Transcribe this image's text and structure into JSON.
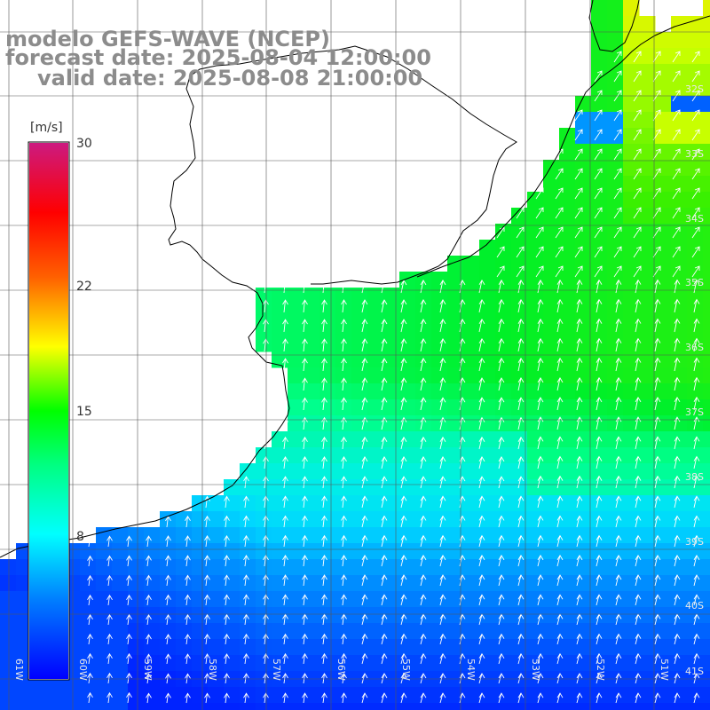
{
  "title": {
    "line1": "modelo GEFS-WAVE (NCEP)",
    "line2": "forecast date: 2025-08-04 12:00:00",
    "line3": "valid date: 2025-08-08 21:00:00"
  },
  "colorbar": {
    "unit": "[m/s]",
    "ticks": [
      "30",
      "22",
      "15",
      "8"
    ],
    "tick_values": [
      30,
      22,
      15,
      8
    ],
    "range": [
      0,
      30
    ],
    "colors": [
      "#0000ff",
      "#00aaff",
      "#00ffff",
      "#00ff00",
      "#ffff00",
      "#ff8000",
      "#ff0000",
      "#cc0066"
    ]
  },
  "lat_labels": [
    "32S",
    "33S",
    "34S",
    "35S",
    "36S",
    "37S",
    "38S",
    "39S",
    "40S",
    "41S"
  ],
  "lon_labels": [
    "61W",
    "60W",
    "59W",
    "58W",
    "57W",
    "56W",
    "55W",
    "54W",
    "53W",
    "52W",
    "51W"
  ],
  "colors": {
    "title": "#8c8c8c",
    "grid": "#555555",
    "coast": "#000000",
    "arrow": "#ffffff"
  }
}
